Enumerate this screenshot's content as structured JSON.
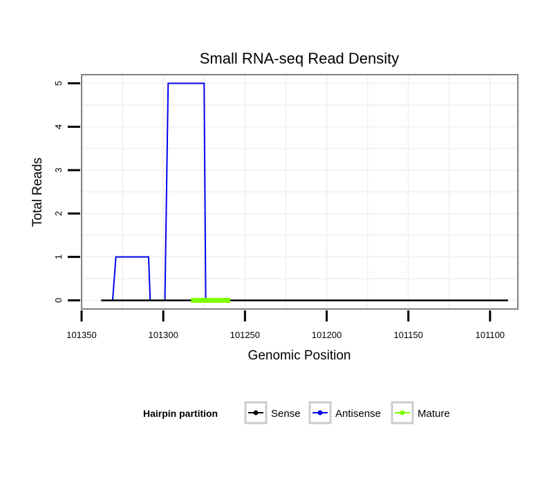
{
  "chart_data": {
    "type": "line",
    "title": "Small RNA-seq Read Density",
    "xlabel": "Genomic Position",
    "ylabel": "Total Reads",
    "x_reversed": true,
    "xlim": [
      101350,
      101083
    ],
    "ylim": [
      -0.2,
      5.2
    ],
    "x_ticks": [
      101350,
      101300,
      101250,
      101200,
      101150,
      101100
    ],
    "x_tick_labels": [
      "101350",
      "101300",
      "101250",
      "101200",
      "101150",
      "101100"
    ],
    "y_ticks": [
      0,
      1,
      2,
      3,
      4,
      5
    ],
    "y_tick_labels": [
      "0",
      "1",
      "2",
      "3",
      "4",
      "5"
    ],
    "grid": true,
    "legend": {
      "title": "Hairpin partition",
      "position": "bottom",
      "entries": [
        "Sense",
        "Antisense",
        "Mature"
      ]
    },
    "series": [
      {
        "name": "Sense",
        "color": "#000000",
        "x": [
          101338,
          101089
        ],
        "y": [
          0,
          0
        ]
      },
      {
        "name": "Antisense",
        "color": "#0000ee",
        "x": [
          101338,
          101331,
          101329,
          101309,
          101308,
          101299,
          101297,
          101275,
          101274,
          101089
        ],
        "y": [
          0,
          0,
          1,
          1,
          0,
          0,
          5,
          5,
          0,
          0
        ]
      },
      {
        "name": "Mature",
        "color": "#7cfc00",
        "x": [
          101283,
          101259
        ],
        "y": [
          0,
          0
        ]
      }
    ]
  }
}
